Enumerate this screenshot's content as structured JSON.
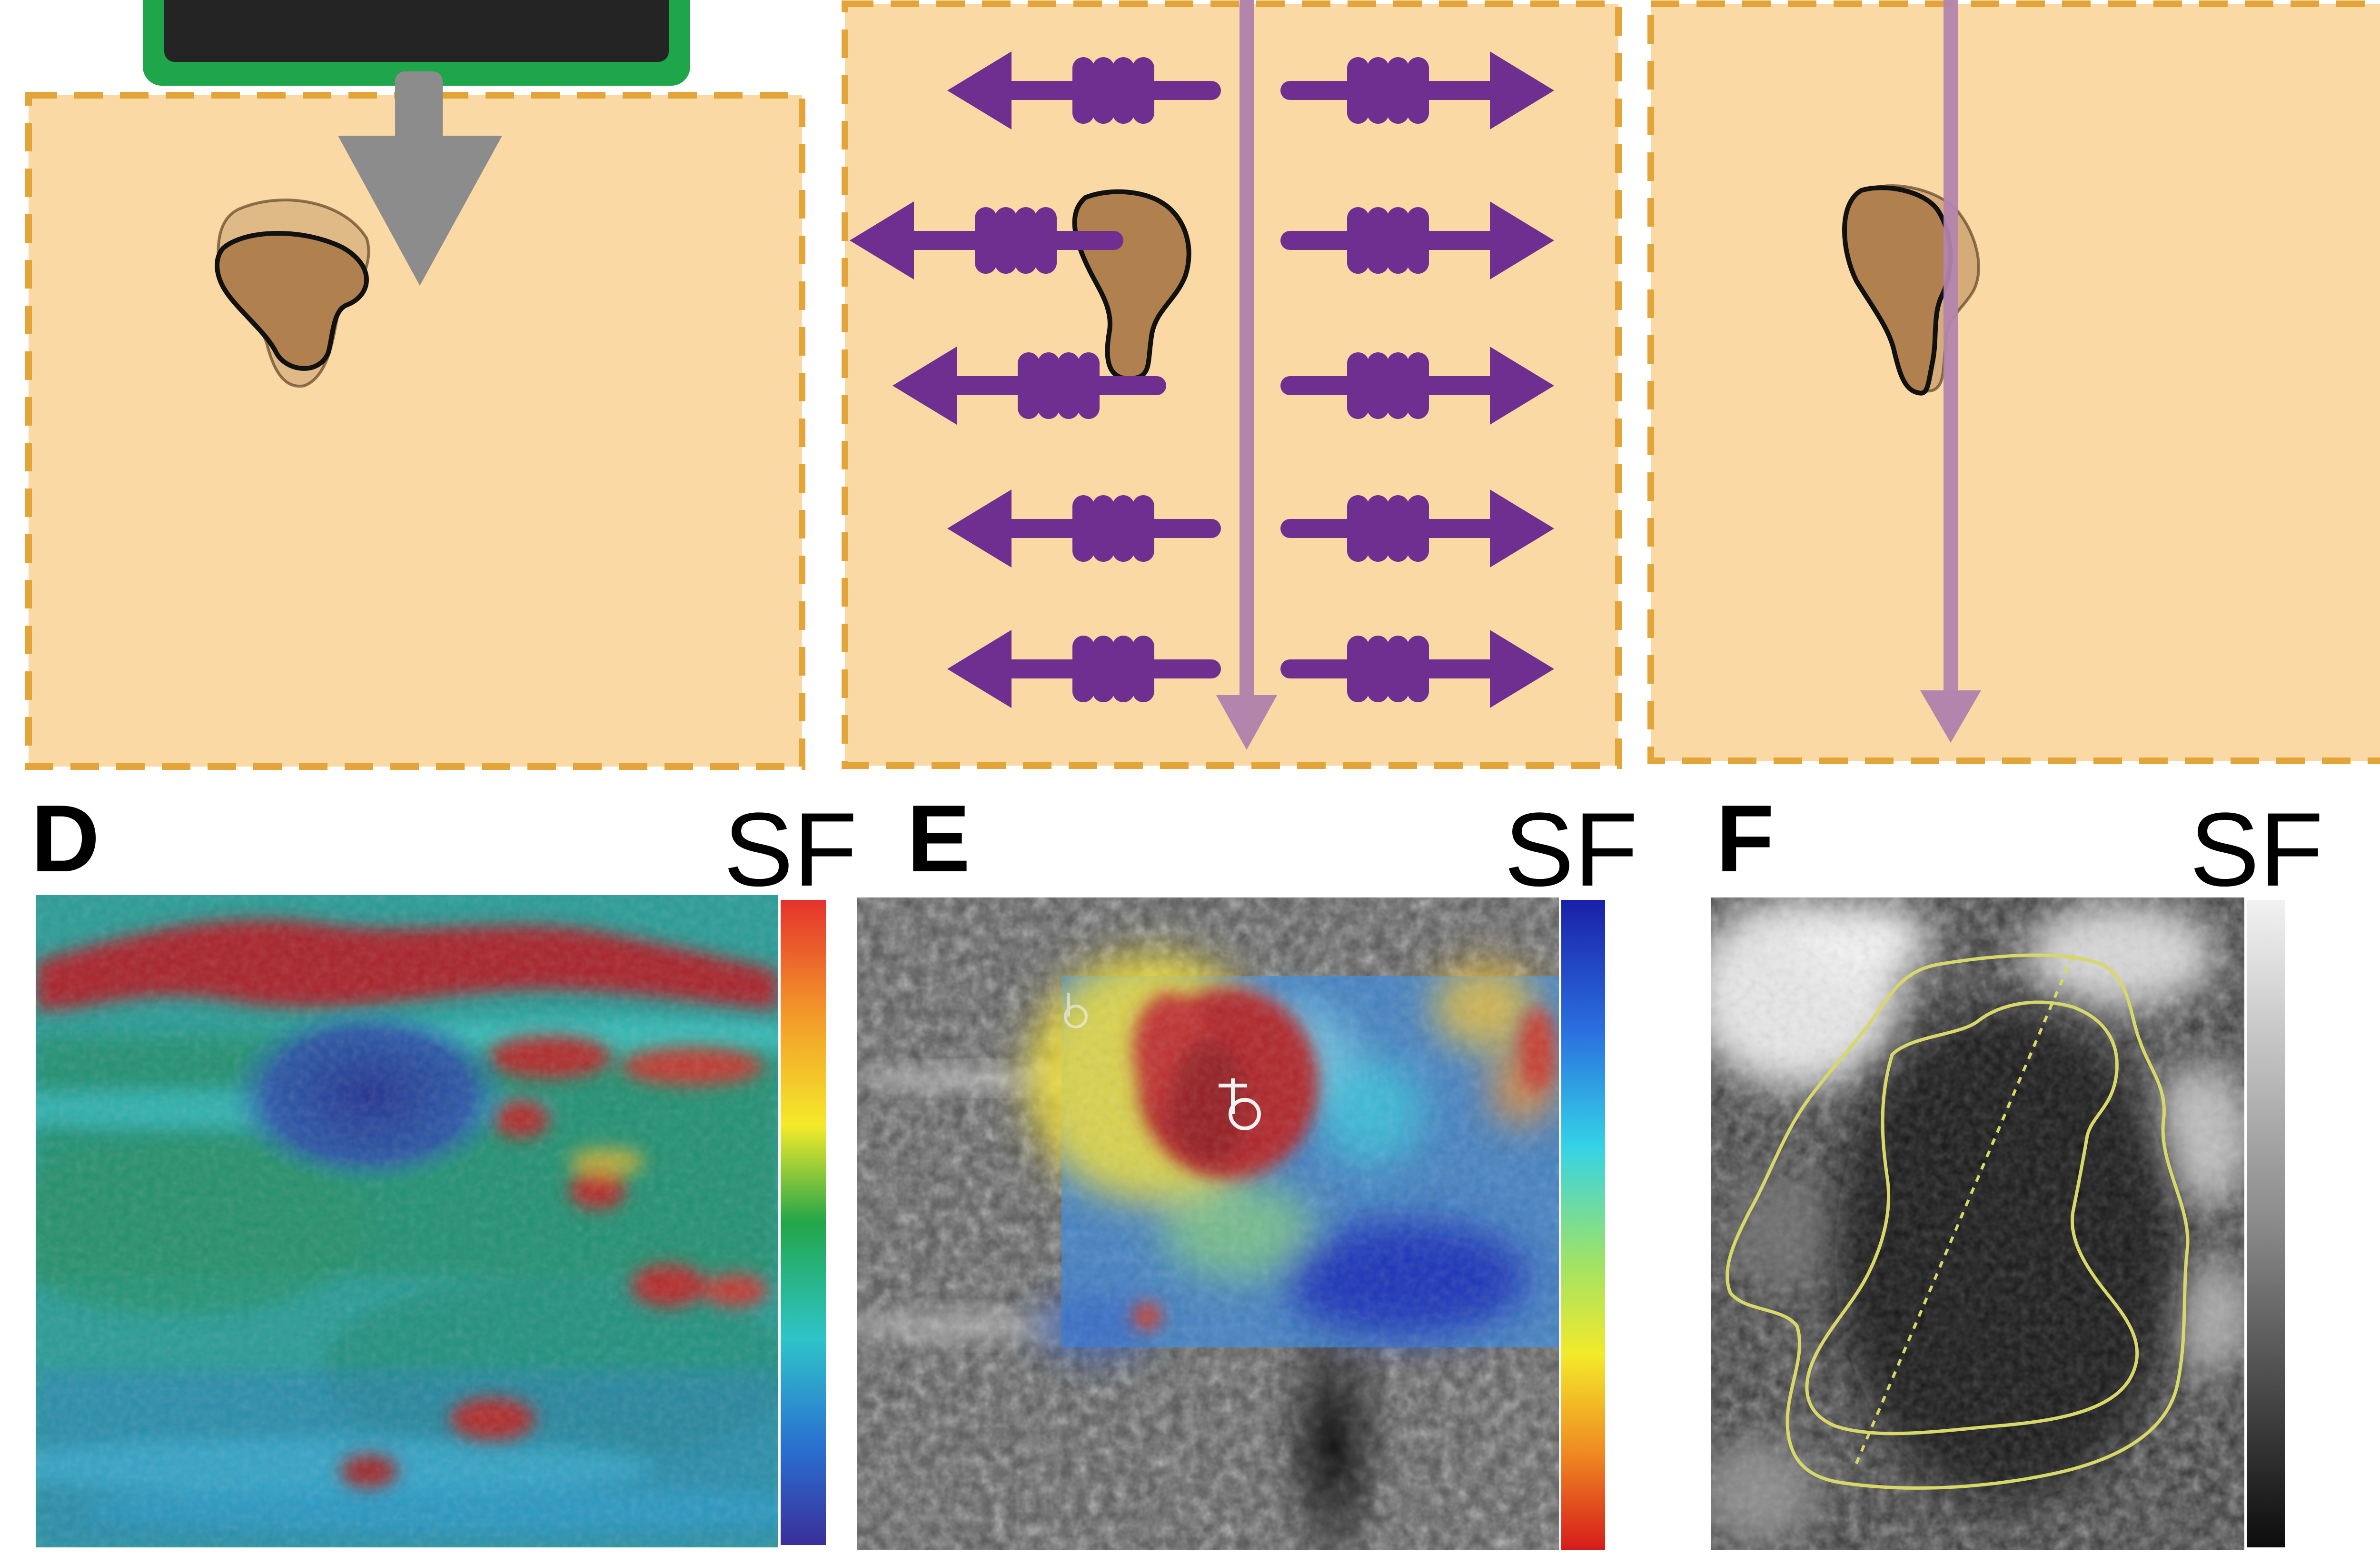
{
  "panels": {
    "D": {
      "letter": "D",
      "colorbar_label": "SF"
    },
    "E": {
      "letter": "E",
      "colorbar_label": "SF"
    },
    "F": {
      "letter": "F",
      "colorbar_label": "SF"
    }
  },
  "colors": {
    "tissue_fill": "#fbd9a5",
    "tissue_border": "#e3a53a",
    "probe_green": "#1fa64a",
    "probe_screen": "#242424",
    "compression_arrow": "#8c8c8c",
    "lesion_brown": "#b0804e",
    "shear_wave_purple": "#6f2f91",
    "propagation_line": "#b385ad",
    "roi_contour": "#d8d86a"
  },
  "icons": {
    "probe": "ultrasound-probe-icon",
    "compression": "down-arrow-icon",
    "shear_wave": "shear-wave-arrow-icon"
  }
}
